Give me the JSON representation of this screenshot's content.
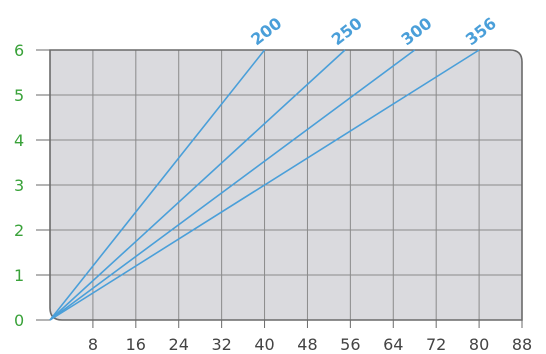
{
  "chart_data": {
    "type": "line",
    "title": "",
    "xlabel": "",
    "ylabel": "",
    "xlim": [
      0,
      88
    ],
    "ylim": [
      0,
      6
    ],
    "x_ticks": [
      "8",
      "16",
      "24",
      "32",
      "40",
      "48",
      "56",
      "64",
      "72",
      "80",
      "88"
    ],
    "y_ticks": [
      "0",
      "1",
      "2",
      "3",
      "4",
      "5",
      "6"
    ],
    "grid": true,
    "series": [
      {
        "name": "200",
        "x": [
          0,
          40
        ],
        "y": [
          0,
          6
        ]
      },
      {
        "name": "250",
        "x": [
          0,
          55
        ],
        "y": [
          0,
          6
        ]
      },
      {
        "name": "300",
        "x": [
          0,
          68
        ],
        "y": [
          0,
          6
        ]
      },
      {
        "name": "356",
        "x": [
          0,
          80
        ],
        "y": [
          0,
          6
        ]
      }
    ],
    "colors": {
      "line": "#4a9fd9",
      "series_label": "#4a9fd9",
      "plot_background": "#dadade",
      "grid": "#8a8a8a",
      "frame": "#6a6a6a",
      "y_tick_text": "#3aa23a",
      "x_tick_text": "#444444"
    }
  }
}
